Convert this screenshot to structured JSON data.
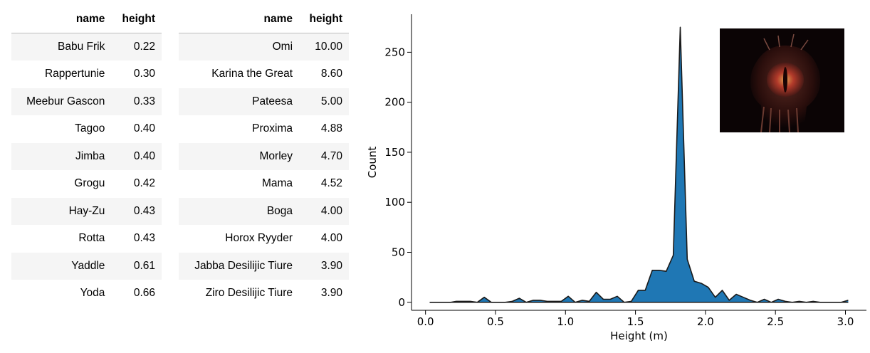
{
  "tables": [
    {
      "columns": [
        "name",
        "height"
      ],
      "rows": [
        [
          "Babu Frik",
          "0.22"
        ],
        [
          "Rappertunie",
          "0.30"
        ],
        [
          "Meebur Gascon",
          "0.33"
        ],
        [
          "Tagoo",
          "0.40"
        ],
        [
          "Jimba",
          "0.40"
        ],
        [
          "Grogu",
          "0.42"
        ],
        [
          "Hay-Zu",
          "0.43"
        ],
        [
          "Rotta",
          "0.43"
        ],
        [
          "Yaddle",
          "0.61"
        ],
        [
          "Yoda",
          "0.66"
        ]
      ]
    },
    {
      "columns": [
        "name",
        "height"
      ],
      "rows": [
        [
          "Omi",
          "10.00"
        ],
        [
          "Karina the Great",
          "8.60"
        ],
        [
          "Pateesa",
          "5.00"
        ],
        [
          "Proxima",
          "4.88"
        ],
        [
          "Morley",
          "4.70"
        ],
        [
          "Mama",
          "4.52"
        ],
        [
          "Boga",
          "4.00"
        ],
        [
          "Horox Ryyder",
          "4.00"
        ],
        [
          "Jabba Desilijic Tiure",
          "3.90"
        ],
        [
          "Ziro Desilijic Tiure",
          "3.90"
        ]
      ]
    }
  ],
  "chart_data": {
    "type": "area",
    "title": "",
    "xlabel": "Height (m)",
    "ylabel": "Count",
    "xlim": [
      -0.1,
      3.15
    ],
    "ylim": [
      -8,
      288
    ],
    "xticks": [
      0.0,
      0.5,
      1.0,
      1.5,
      2.0,
      2.5,
      3.0
    ],
    "xtick_labels": [
      "0.0",
      "0.5",
      "1.0",
      "1.5",
      "2.0",
      "2.5",
      "3.0"
    ],
    "yticks": [
      0,
      50,
      100,
      150,
      200,
      250
    ],
    "ytick_labels": [
      "0",
      "50",
      "100",
      "150",
      "200",
      "250"
    ],
    "grid": false,
    "fill_color": "#1f77b4",
    "line_color": "#1a1a1a",
    "x": [
      0.03,
      0.08,
      0.13,
      0.18,
      0.22,
      0.27,
      0.32,
      0.37,
      0.42,
      0.47,
      0.52,
      0.57,
      0.62,
      0.67,
      0.72,
      0.77,
      0.82,
      0.87,
      0.92,
      0.97,
      1.02,
      1.07,
      1.12,
      1.17,
      1.22,
      1.27,
      1.32,
      1.37,
      1.42,
      1.47,
      1.52,
      1.57,
      1.62,
      1.67,
      1.72,
      1.77,
      1.82,
      1.87,
      1.92,
      1.97,
      2.02,
      2.07,
      2.12,
      2.17,
      2.22,
      2.27,
      2.32,
      2.37,
      2.42,
      2.47,
      2.52,
      2.57,
      2.62,
      2.67,
      2.72,
      2.77,
      2.82,
      2.87,
      2.92,
      2.97,
      3.02
    ],
    "values": [
      0,
      0,
      0,
      0,
      1,
      1,
      1,
      0,
      5,
      0,
      0,
      0,
      1,
      4,
      0,
      2,
      2,
      1,
      1,
      1,
      6,
      0,
      2,
      1,
      10,
      3,
      3,
      6,
      0,
      1,
      12,
      12,
      32,
      32,
      31,
      47,
      275,
      43,
      21,
      19,
      15,
      5,
      12,
      2,
      8,
      5,
      2,
      0,
      3,
      0,
      3,
      1,
      0,
      1,
      0,
      1,
      0,
      0,
      0,
      0,
      2
    ]
  },
  "inset_image": {
    "subject": "close-up creature with glowing eye",
    "colors": [
      "#0b0405",
      "#4a1a16",
      "#b23a2a",
      "#e0a050"
    ]
  }
}
